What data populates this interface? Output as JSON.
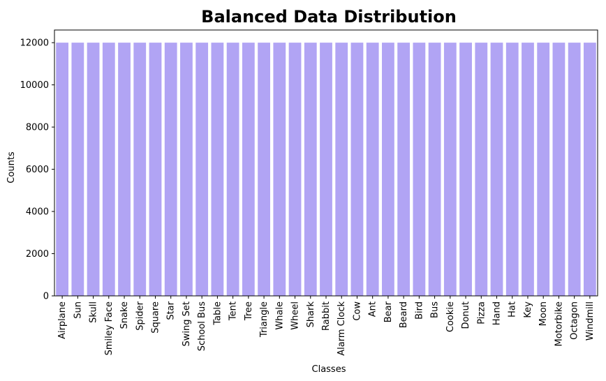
{
  "chart_data": {
    "type": "bar",
    "title": "Balanced Data Distribution",
    "xlabel": "Classes",
    "ylabel": "Counts",
    "categories": [
      "Airplane",
      "Sun",
      "Skull",
      "Smiley Face",
      "Snake",
      "Spider",
      "Square",
      "Star",
      "Swing Set",
      "School Bus",
      "Table",
      "Tent",
      "Tree",
      "Triangle",
      "Whale",
      "Wheel",
      "Shark",
      "Rabbit",
      "Alarm Clock",
      "Cow",
      "Ant",
      "Bear",
      "Beard",
      "Bird",
      "Bus",
      "Cookie",
      "Donut",
      "Pizza",
      "Hand",
      "Hat",
      "Key",
      "Moon",
      "Motorbike",
      "Octagon",
      "Windmill"
    ],
    "values": [
      12000,
      12000,
      12000,
      12000,
      12000,
      12000,
      12000,
      12000,
      12000,
      12000,
      12000,
      12000,
      12000,
      12000,
      12000,
      12000,
      12000,
      12000,
      12000,
      12000,
      12000,
      12000,
      12000,
      12000,
      12000,
      12000,
      12000,
      12000,
      12000,
      12000,
      12000,
      12000,
      12000,
      12000,
      12000
    ],
    "ylim": [
      0,
      12600
    ],
    "yticks": [
      0,
      2000,
      4000,
      6000,
      8000,
      10000,
      12000
    ],
    "bar_color": "#b1a4f4",
    "grid": false,
    "legend": "none"
  }
}
